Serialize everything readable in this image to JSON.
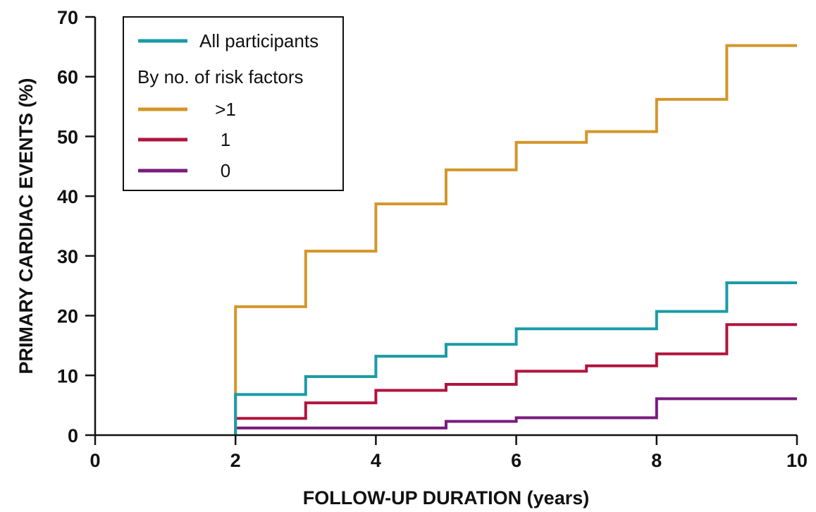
{
  "chart_data": {
    "type": "line",
    "step": true,
    "xlabel": "FOLLOW-UP DURATION (years)",
    "ylabel": "PRIMARY CARDIAC EVENTS (%)",
    "xlim": [
      0,
      10
    ],
    "ylim": [
      0,
      70
    ],
    "xticks": [
      0,
      2,
      4,
      6,
      8,
      10
    ],
    "yticks": [
      0,
      10,
      20,
      30,
      40,
      50,
      60,
      70
    ],
    "grid": false,
    "legend": {
      "placement": "top-left",
      "heading": "By no. of risk factors"
    },
    "series": [
      {
        "name": "All participants",
        "color": "#1a9ba8",
        "x": [
          2,
          2,
          3,
          4,
          5,
          6,
          8,
          9,
          10
        ],
        "y": [
          0,
          6.8,
          9.8,
          13.2,
          15.2,
          17.8,
          20.7,
          25.5,
          25.5
        ]
      },
      {
        "name": ">1",
        "color": "#d4962a",
        "x": [
          2,
          2,
          3,
          4,
          5,
          6,
          7,
          8,
          9,
          10
        ],
        "y": [
          0,
          21.5,
          30.8,
          38.7,
          44.4,
          49.0,
          50.8,
          56.2,
          65.2,
          65.2
        ]
      },
      {
        "name": "1",
        "color": "#b0143e",
        "x": [
          2,
          3,
          4,
          5,
          6,
          7,
          8,
          9,
          10
        ],
        "y": [
          2.8,
          5.4,
          7.5,
          8.5,
          10.7,
          11.6,
          13.6,
          18.5,
          18.5
        ]
      },
      {
        "name": "0",
        "color": "#7a1b7d",
        "x": [
          2,
          5,
          6,
          8,
          10
        ],
        "y": [
          1.2,
          2.3,
          2.9,
          6.1,
          6.1
        ]
      }
    ]
  }
}
